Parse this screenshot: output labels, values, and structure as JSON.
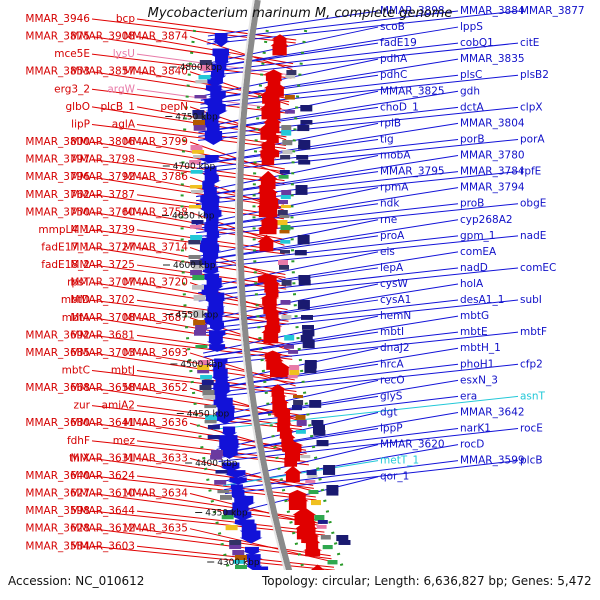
{
  "title": "Mycobacterium marinum M, complete genome",
  "footer": {
    "accession": "Accession: NC_010612",
    "summary": "Topology: circular; Length: 6,636,827 bp; Genes: 5,472"
  },
  "ticks": [
    "4800 kbp",
    "4750 kbp",
    "4700 kbp",
    "4650 kbp",
    "4600 kbp",
    "4550 kbp",
    "4500 kbp",
    "4450 kbp",
    "4400 kbp",
    "4350 kbp",
    "4300 kbp"
  ],
  "left_labels": [
    {
      "t": "bcp",
      "c": "red"
    },
    {
      "t": "MMAR_3946",
      "c": "red"
    },
    {
      "t": "MMAR_3908",
      "c": "red"
    },
    {
      "t": "MMAR_3875",
      "c": "red"
    },
    {
      "t": "MMAR_3874",
      "c": "red"
    },
    {
      "t": "lysU",
      "c": "pink"
    },
    {
      "t": "mce5E",
      "c": "red"
    },
    {
      "t": "MMAR_3857",
      "c": "red"
    },
    {
      "t": "MMAR_3853",
      "c": "red"
    },
    {
      "t": "MMAR_3840",
      "c": "red"
    },
    {
      "t": "argW",
      "c": "pink"
    },
    {
      "t": "erg3_2",
      "c": "red"
    },
    {
      "t": "plcB_1",
      "c": "red"
    },
    {
      "t": "glbO",
      "c": "red"
    },
    {
      "t": "pepN",
      "c": "red"
    },
    {
      "t": "aglA",
      "c": "red"
    },
    {
      "t": "lipP",
      "c": "red"
    },
    {
      "t": "MMAR_3806",
      "c": "red"
    },
    {
      "t": "MMAR_3800",
      "c": "red"
    },
    {
      "t": "MMAR_3799",
      "c": "red"
    },
    {
      "t": "MMAR_3798",
      "c": "red"
    },
    {
      "t": "MMAR_3797",
      "c": "red"
    },
    {
      "t": "MMAR_3792",
      "c": "red"
    },
    {
      "t": "MMAR_3796",
      "c": "red"
    },
    {
      "t": "MMAR_3786",
      "c": "red"
    },
    {
      "t": "MMAR_3787",
      "c": "red"
    },
    {
      "t": "MMAR_3762",
      "c": "red"
    },
    {
      "t": "MMAR_3760",
      "c": "red"
    },
    {
      "t": "MMAR_3750",
      "c": "red"
    },
    {
      "t": "MMAR_3758",
      "c": "red"
    },
    {
      "t": "MMAR_3739",
      "c": "red"
    },
    {
      "t": "mmpL4_1",
      "c": "red"
    },
    {
      "t": "MMAR_3727",
      "c": "red"
    },
    {
      "t": "fadE17_1",
      "c": "red"
    },
    {
      "t": "MMAR_3714",
      "c": "red"
    },
    {
      "t": "MMAR_3725",
      "c": "red"
    },
    {
      "t": "fadE18_2",
      "c": "red"
    },
    {
      "t": "MMAR_3707",
      "c": "red"
    },
    {
      "t": "rpsT",
      "c": "red"
    },
    {
      "t": "MMAR_3720",
      "c": "red"
    },
    {
      "t": "MMAR_3702",
      "c": "red"
    },
    {
      "t": "mbtD",
      "c": "red"
    },
    {
      "t": "MMAR_3708",
      "c": "red"
    },
    {
      "t": "mbtA",
      "c": "red"
    },
    {
      "t": "MMAR_3687",
      "c": "red"
    },
    {
      "t": "MMAR_3681",
      "c": "red"
    },
    {
      "t": "MMAR_3692",
      "c": "red"
    },
    {
      "t": "MMAR_3703",
      "c": "red"
    },
    {
      "t": "MMAR_3685",
      "c": "red"
    },
    {
      "t": "MMAR_3693",
      "c": "red"
    },
    {
      "t": "mbtJ",
      "c": "red"
    },
    {
      "t": "mbtC",
      "c": "red"
    },
    {
      "t": "MMAR_3658",
      "c": "red"
    },
    {
      "t": "MMAR_3668",
      "c": "red"
    },
    {
      "t": "MMAR_3652",
      "c": "red"
    },
    {
      "t": "amiA2",
      "c": "red"
    },
    {
      "t": "zur",
      "c": "red"
    },
    {
      "t": "MMAR_3641",
      "c": "red"
    },
    {
      "t": "MMAR_3680",
      "c": "red"
    },
    {
      "t": "MMAR_3636",
      "c": "red"
    },
    {
      "t": "mez",
      "c": "red"
    },
    {
      "t": "fdhF",
      "c": "red"
    },
    {
      "t": "MMAR_3631",
      "c": "red"
    },
    {
      "t": "thiX",
      "c": "red"
    },
    {
      "t": "MMAR_3633",
      "c": "red"
    },
    {
      "t": "MMAR_3624",
      "c": "red"
    },
    {
      "t": "MMAR_3640",
      "c": "red"
    },
    {
      "t": "MMAR_3610",
      "c": "red"
    },
    {
      "t": "MMAR_3627",
      "c": "red"
    },
    {
      "t": "MMAR_3634",
      "c": "red"
    },
    {
      "t": "MMAR_3644",
      "c": "red"
    },
    {
      "t": "MMAR_3598",
      "c": "red"
    },
    {
      "t": "MMAR_3612",
      "c": "red"
    },
    {
      "t": "MMAR_3628",
      "c": "red"
    },
    {
      "t": "MMAR_3635",
      "c": "red"
    },
    {
      "t": "MMAR_3603",
      "c": "red"
    },
    {
      "t": "MMAR_3584",
      "c": "red"
    }
  ],
  "right_labels": [
    {
      "t": "MMAR_3898",
      "c": "blue"
    },
    {
      "t": "MMAR_3884",
      "c": "blue"
    },
    {
      "t": "MMAR_3877",
      "c": "blue"
    },
    {
      "t": "scoB",
      "c": "blue"
    },
    {
      "t": "lppS",
      "c": "blue"
    },
    {
      "t": "fadE19",
      "c": "blue"
    },
    {
      "t": "cobQ1",
      "c": "blue"
    },
    {
      "t": "citE",
      "c": "blue"
    },
    {
      "t": "pdhA",
      "c": "blue"
    },
    {
      "t": "MMAR_3835",
      "c": "blue"
    },
    {
      "t": "pdhC",
      "c": "blue"
    },
    {
      "t": "plsC",
      "c": "blue"
    },
    {
      "t": "plsB2",
      "c": "blue"
    },
    {
      "t": "MMAR_3825",
      "c": "blue"
    },
    {
      "t": "gdh",
      "c": "blue"
    },
    {
      "t": "choD_1",
      "c": "blue"
    },
    {
      "t": "dctA",
      "c": "blue"
    },
    {
      "t": "clpX",
      "c": "blue"
    },
    {
      "t": "rpiB",
      "c": "blue"
    },
    {
      "t": "MMAR_3804",
      "c": "blue"
    },
    {
      "t": "tig",
      "c": "blue"
    },
    {
      "t": "porB",
      "c": "blue"
    },
    {
      "t": "porA",
      "c": "blue"
    },
    {
      "t": "mobA",
      "c": "blue"
    },
    {
      "t": "MMAR_3780",
      "c": "blue"
    },
    {
      "t": "MMAR_3795",
      "c": "blue"
    },
    {
      "t": "MMAR_3784",
      "c": "blue"
    },
    {
      "t": "rpfE",
      "c": "blue"
    },
    {
      "t": "rpmA",
      "c": "blue"
    },
    {
      "t": "MMAR_3794",
      "c": "blue"
    },
    {
      "t": "ndk",
      "c": "blue"
    },
    {
      "t": "proB",
      "c": "blue"
    },
    {
      "t": "obgE",
      "c": "blue"
    },
    {
      "t": "rne",
      "c": "blue"
    },
    {
      "t": "cyp268A2",
      "c": "blue"
    },
    {
      "t": "proA",
      "c": "blue"
    },
    {
      "t": "gpm_1",
      "c": "blue"
    },
    {
      "t": "nadE",
      "c": "blue"
    },
    {
      "t": "eis",
      "c": "blue"
    },
    {
      "t": "comEA",
      "c": "blue"
    },
    {
      "t": "lepA",
      "c": "blue"
    },
    {
      "t": "nadD",
      "c": "blue"
    },
    {
      "t": "comEC",
      "c": "blue"
    },
    {
      "t": "cysW",
      "c": "blue"
    },
    {
      "t": "holA",
      "c": "blue"
    },
    {
      "t": "cysA1",
      "c": "blue"
    },
    {
      "t": "desA1_1",
      "c": "blue"
    },
    {
      "t": "subI",
      "c": "blue"
    },
    {
      "t": "hemN",
      "c": "blue"
    },
    {
      "t": "mbtG",
      "c": "blue"
    },
    {
      "t": "mbtI",
      "c": "blue"
    },
    {
      "t": "mbtE",
      "c": "blue"
    },
    {
      "t": "mbtF",
      "c": "blue"
    },
    {
      "t": "dnaJ2",
      "c": "blue"
    },
    {
      "t": "mbtH_1",
      "c": "blue"
    },
    {
      "t": "hrcA",
      "c": "blue"
    },
    {
      "t": "phoH1",
      "c": "blue"
    },
    {
      "t": "cfp2",
      "c": "blue"
    },
    {
      "t": "recO",
      "c": "blue"
    },
    {
      "t": "esxN_3",
      "c": "blue"
    },
    {
      "t": "glyS",
      "c": "blue"
    },
    {
      "t": "era",
      "c": "blue"
    },
    {
      "t": "asnT",
      "c": "cyan"
    },
    {
      "t": "dgt",
      "c": "blue"
    },
    {
      "t": "MMAR_3642",
      "c": "blue"
    },
    {
      "t": "lppP",
      "c": "blue"
    },
    {
      "t": "narK1",
      "c": "blue"
    },
    {
      "t": "rocE",
      "c": "blue"
    },
    {
      "t": "MMAR_3620",
      "c": "blue"
    },
    {
      "t": "rocD",
      "c": "blue"
    },
    {
      "t": "metT_1",
      "c": "cyan"
    },
    {
      "t": "MMAR_3599",
      "c": "blue"
    },
    {
      "t": "plcB",
      "c": "blue"
    },
    {
      "t": "qor_1",
      "c": "blue"
    }
  ],
  "colors": {
    "forward": "#e00000",
    "reverse": "#1212d8",
    "backbone": "#888888",
    "gc_skew": "#2a9a2a",
    "trna": "#22c8d8",
    "misc": "#e87aa8"
  }
}
